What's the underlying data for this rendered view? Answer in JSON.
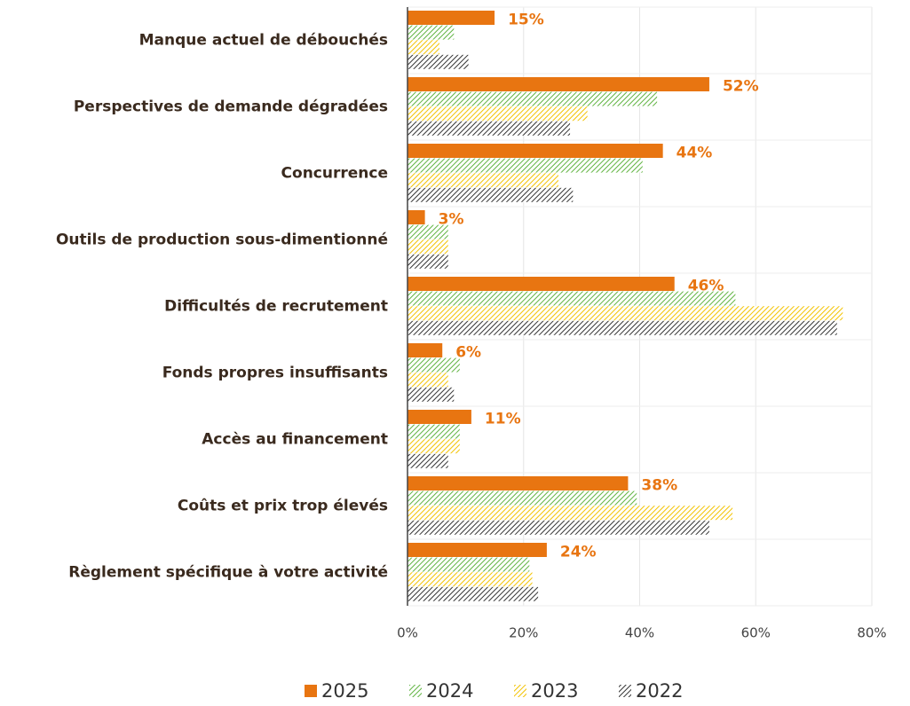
{
  "chart_data": {
    "type": "bar",
    "orientation": "horizontal",
    "categories": [
      "Manque actuel de débouchés",
      "Perspectives de demande dégradées",
      "Concurrence",
      "Outils de production sous-dimentionné",
      "Difficultés de recrutement",
      "Fonds propres insuffisants",
      "Accès au financement",
      "Coûts et prix trop élevés",
      "Règlement spécifique à votre activité"
    ],
    "series": [
      {
        "name": "2025",
        "color": "#e87511",
        "pattern": "solid",
        "values": [
          15,
          52,
          44,
          3,
          46,
          6,
          11,
          38,
          24
        ],
        "value_labels": [
          "15%",
          "52%",
          "44%",
          "3%",
          "46%",
          "6%",
          "11%",
          "38%",
          "24%"
        ]
      },
      {
        "name": "2024",
        "color": "#5fb340",
        "pattern": "hatch",
        "values": [
          8,
          43,
          40.5,
          7,
          56.5,
          9,
          9,
          39.5,
          21
        ]
      },
      {
        "name": "2023",
        "color": "#f2c200",
        "pattern": "hatch",
        "values": [
          5.5,
          31,
          26,
          7,
          75,
          7,
          9,
          56,
          21.5
        ]
      },
      {
        "name": "2022",
        "color": "#333333",
        "pattern": "hatch",
        "values": [
          10.5,
          28,
          28.5,
          7,
          74,
          8,
          7,
          52,
          22.5
        ]
      }
    ],
    "xlim": [
      0,
      80
    ],
    "xticks": [
      {
        "value": 0,
        "label": "0%"
      },
      {
        "value": 20,
        "label": "20%"
      },
      {
        "value": 40,
        "label": "40%"
      },
      {
        "value": 60,
        "label": "60%"
      },
      {
        "value": 80,
        "label": "80%"
      }
    ],
    "grid": true,
    "legend": "bottom"
  }
}
